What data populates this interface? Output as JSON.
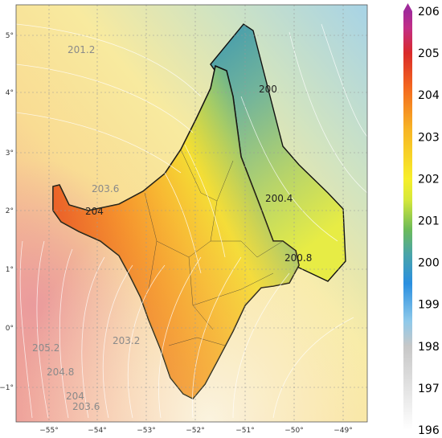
{
  "lon_ticks": [
    "−55°",
    "−54°",
    "−53°",
    "−52°",
    "−51°",
    "−50°",
    "−49°"
  ],
  "lat_ticks": [
    "5°",
    "4°",
    "3°",
    "2°",
    "1°",
    "0°",
    "−1°"
  ],
  "contour_labels": [
    {
      "text": "201.2",
      "color": "#8a8a8a"
    },
    {
      "text": "200",
      "color": "#222222"
    },
    {
      "text": "203.6",
      "color": "#8a8a8a"
    },
    {
      "text": "204",
      "color": "#222222"
    },
    {
      "text": "200.4",
      "color": "#222222"
    },
    {
      "text": "200.8",
      "color": "#222222"
    },
    {
      "text": "203.2",
      "color": "#8a8a8a"
    },
    {
      "text": "205.2",
      "color": "#8a8a8a"
    },
    {
      "text": "204.8",
      "color": "#8a8a8a"
    },
    {
      "text": "204",
      "color": "#8a8a8a"
    },
    {
      "text": "203.6",
      "color": "#8a8a8a"
    }
  ],
  "colorbar": {
    "ticks": [
      "206",
      "205",
      "204",
      "203",
      "202",
      "201",
      "200",
      "199",
      "198",
      "197",
      "196"
    ],
    "min": 196,
    "max": 206
  },
  "colors": {
    "high": "#e84a1a",
    "mid": "#f4d22c",
    "low": "#3c9db3"
  }
}
